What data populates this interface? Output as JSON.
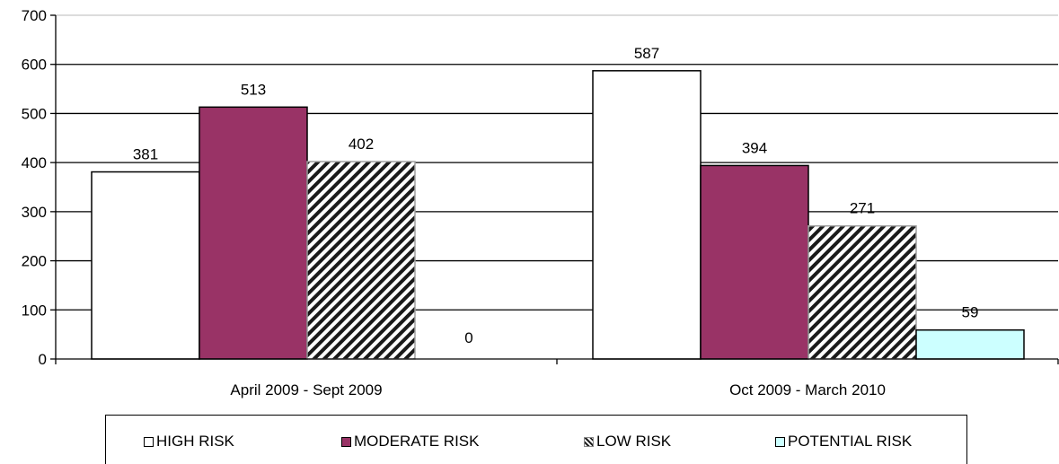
{
  "chart_data": {
    "type": "bar",
    "categories": [
      "April 2009 - Sept 2009",
      "Oct 2009 - March 2010"
    ],
    "series": [
      {
        "name": "HIGH RISK",
        "values": [
          381,
          587
        ],
        "color": "#ffffff",
        "pattern": "none"
      },
      {
        "name": "MODERATE RISK",
        "values": [
          513,
          394
        ],
        "color": "#993366",
        "pattern": "none"
      },
      {
        "name": "LOW RISK",
        "values": [
          402,
          271
        ],
        "color": "#ffffff",
        "pattern": "diagonal-hatch"
      },
      {
        "name": "POTENTIAL RISK",
        "values": [
          0,
          59
        ],
        "color": "#ccffff",
        "pattern": "none"
      }
    ],
    "data_labels": [
      [
        "381",
        "587"
      ],
      [
        "513",
        "394"
      ],
      [
        "402",
        "271"
      ],
      [
        "0",
        "59"
      ]
    ],
    "y_ticks": [
      "0",
      "100",
      "200",
      "300",
      "400",
      "500",
      "600",
      "700"
    ],
    "ylim": [
      0,
      700
    ],
    "grid": true,
    "legend_position": "bottom"
  }
}
